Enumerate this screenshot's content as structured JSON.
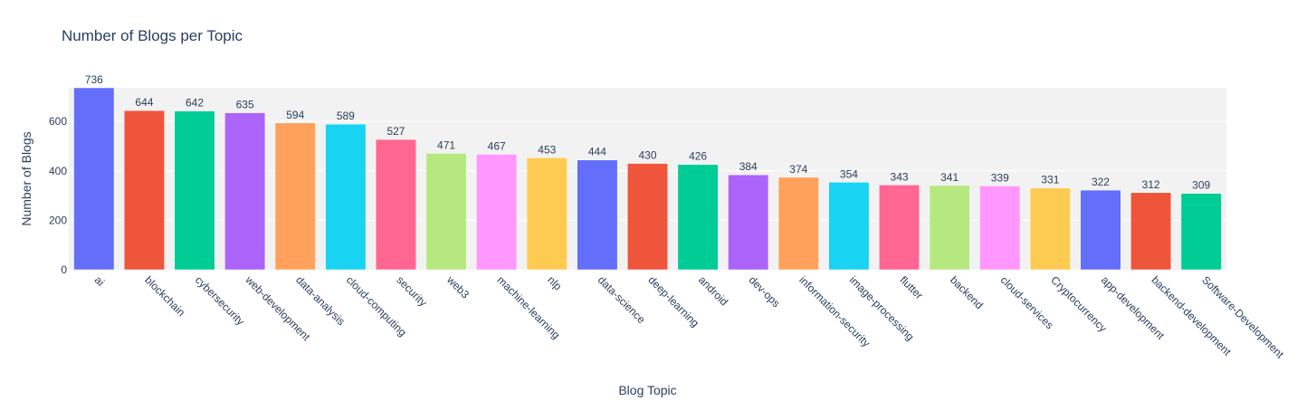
{
  "chart_data": {
    "type": "bar",
    "title": "Number of Blogs per Topic",
    "xlabel": "Blog Topic",
    "ylabel": "Number of Blogs",
    "categories": [
      "ai",
      "blockchain",
      "cybersecurity",
      "web-development",
      "data-analysis",
      "cloud-computing",
      "security",
      "web3",
      "machine-learning",
      "nlp",
      "data-science",
      "deep-learning",
      "android",
      "dev-ops",
      "information-security",
      "image-processing",
      "flutter",
      "backend",
      "cloud-services",
      "Cryptocurrency",
      "app-development",
      "backend-development",
      "Software-Development"
    ],
    "values": [
      736,
      644,
      642,
      635,
      594,
      589,
      527,
      471,
      467,
      453,
      444,
      430,
      426,
      384,
      374,
      354,
      343,
      341,
      339,
      331,
      322,
      312,
      309
    ],
    "ylim": [
      0,
      736
    ],
    "yticks": [
      0,
      200,
      400,
      600
    ],
    "grid": true,
    "colors": [
      "#636efa",
      "#EF553B",
      "#00cc96",
      "#ab63fa",
      "#FFA15A",
      "#19d3f3",
      "#FF6692",
      "#B6E880",
      "#FF97FF",
      "#FECB52"
    ],
    "plot_bg": "#f2f2f2"
  }
}
